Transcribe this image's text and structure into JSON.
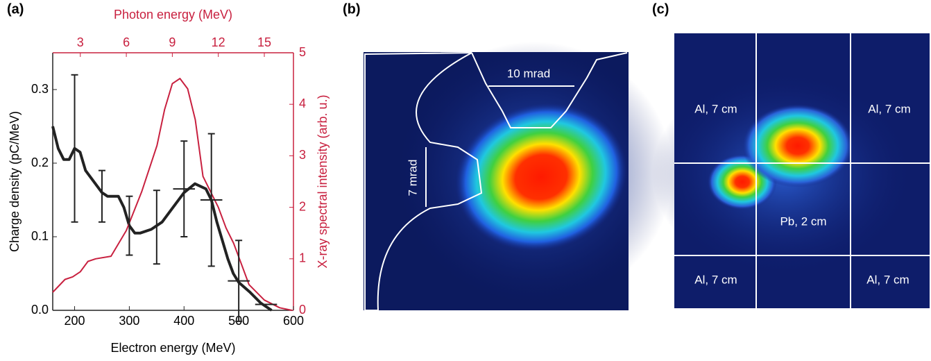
{
  "chart_data": {
    "type": "line",
    "panel_label": "(a)",
    "xlabel": "Electron energy (MeV)",
    "ylabel": "Charge density (pC/MeV)",
    "x2label": "Photon energy (MeV)",
    "y2label": "X-ray spectral intensity (arb. u.)",
    "xlim": [
      160,
      600
    ],
    "xticks": [
      200,
      300,
      400,
      500,
      600
    ],
    "ylim": [
      0,
      0.35
    ],
    "yticks": [
      {
        "value": 0,
        "label": "0.0"
      },
      0.1,
      0.2,
      0.3
    ],
    "x2lim": [
      1.2,
      16.9
    ],
    "x2ticks": [
      3,
      6,
      9,
      12,
      15
    ],
    "y2lim": [
      0,
      5
    ],
    "y2ticks": [
      0,
      1,
      2,
      3,
      4,
      5
    ],
    "axis2_color": "#c8203f",
    "series": [
      {
        "color": "#222222",
        "x": [
          160,
          170,
          180,
          190,
          200,
          210,
          220,
          240,
          250,
          260,
          280,
          290,
          300,
          310,
          320,
          340,
          360,
          380,
          400,
          420,
          440,
          450,
          460,
          470,
          480,
          490,
          500,
          520,
          540,
          560
        ],
        "values": [
          0.25,
          0.22,
          0.205,
          0.205,
          0.22,
          0.215,
          0.19,
          0.17,
          0.16,
          0.155,
          0.155,
          0.14,
          0.115,
          0.105,
          0.105,
          0.11,
          0.12,
          0.14,
          0.16,
          0.172,
          0.165,
          0.15,
          0.12,
          0.095,
          0.07,
          0.05,
          0.038,
          0.025,
          0.01,
          0
        ]
      },
      {
        "color": "#c8203f",
        "axis": "y2",
        "x": [
          1.2,
          2,
          2.5,
          3,
          3.5,
          4,
          5,
          6,
          7,
          8,
          8.5,
          9,
          9.5,
          10,
          10.5,
          11,
          12,
          12.5,
          13,
          13.5,
          14,
          15,
          16,
          16.8
        ],
        "values": [
          0.35,
          0.6,
          0.65,
          0.75,
          0.95,
          1.0,
          1.05,
          1.55,
          2.3,
          3.2,
          3.9,
          4.4,
          4.5,
          4.3,
          3.7,
          2.6,
          2.0,
          1.6,
          1.3,
          0.9,
          0.5,
          0.2,
          0.05,
          0
        ]
      }
    ],
    "error_bars": {
      "color": "#222222",
      "x": [
        200,
        250,
        300,
        350,
        400,
        450,
        500,
        550
      ],
      "y": [
        0.22,
        0.155,
        0.115,
        0.113,
        0.165,
        0.15,
        0.04,
        0.008
      ],
      "yerr": [
        0.1,
        0.035,
        0.04,
        0.05,
        0.065,
        0.09,
        0.055,
        null
      ],
      "xerr": [
        null,
        null,
        null,
        null,
        20,
        20,
        20,
        20
      ]
    }
  },
  "panel_b": {
    "label": "(b)",
    "annotations": [
      "10 mrad",
      "7 mrad"
    ]
  },
  "panel_c": {
    "label": "(c)",
    "regions": [
      "Al, 7 cm",
      "Al, 7 cm",
      "Pb, 2 cm",
      "Al, 7 cm",
      "Al, 7 cm"
    ]
  }
}
